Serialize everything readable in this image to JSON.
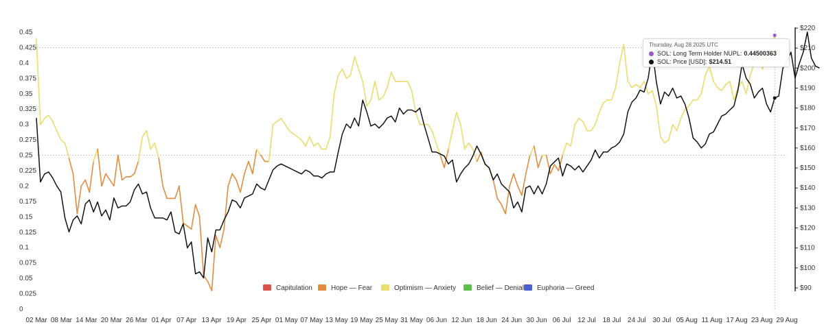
{
  "chart_data": {
    "type": "line",
    "x_tick_labels": [
      "02 Mar",
      "08 Mar",
      "14 Mar",
      "20 Mar",
      "26 Mar",
      "01 Apr",
      "07 Apr",
      "13 Apr",
      "19 Apr",
      "25 Apr",
      "01 May",
      "07 May",
      "13 May",
      "19 May",
      "25 May",
      "31 May",
      "06 Jun",
      "12 Jun",
      "18 Jun",
      "24 Jun",
      "30 Jun",
      "06 Jul",
      "12 Jul",
      "18 Jul",
      "24 Jul",
      "30 Jul",
      "05 Aug",
      "11 Aug",
      "17 Aug",
      "23 Aug",
      "29 Aug"
    ],
    "y_left_ticks": [
      "0",
      "0.025",
      "0.05",
      "0.075",
      "0.1",
      "0.125",
      "0.15",
      "0.175",
      "0.2",
      "0.225",
      "0.25",
      "0.275",
      "0.3",
      "0.325",
      "0.35",
      "0.375",
      "0.4",
      "0.425",
      "0.45"
    ],
    "y_left_range": [
      0,
      0.45
    ],
    "y_right_ticks": [
      "$90",
      "$100",
      "$110",
      "$120",
      "$130",
      "$140",
      "$150",
      "$160",
      "$170",
      "$180",
      "$190",
      "$200",
      "$210",
      "$220"
    ],
    "y_right_range": [
      90,
      220
    ],
    "series": [
      {
        "name": "SOL: Long Term Holder NUPL",
        "axis": "left",
        "values": [
          0.44,
          0.3,
          0.31,
          0.315,
          0.305,
          0.29,
          0.275,
          0.27,
          0.245,
          0.22,
          0.155,
          0.2,
          0.21,
          0.19,
          0.24,
          0.26,
          0.2,
          0.22,
          0.21,
          0.2,
          0.25,
          0.21,
          0.215,
          0.215,
          0.22,
          0.24,
          0.28,
          0.29,
          0.26,
          0.27,
          0.245,
          0.2,
          0.18,
          0.18,
          0.18,
          0.2,
          0.14,
          0.135,
          0.13,
          0.17,
          0.15,
          0.055,
          0.045,
          0.03,
          0.12,
          0.1,
          0.13,
          0.2,
          0.22,
          0.21,
          0.19,
          0.22,
          0.24,
          0.22,
          0.26,
          0.25,
          0.24,
          0.24,
          0.3,
          0.305,
          0.31,
          0.3,
          0.29,
          0.285,
          0.28,
          0.275,
          0.265,
          0.28,
          0.265,
          0.27,
          0.26,
          0.26,
          0.28,
          0.35,
          0.38,
          0.39,
          0.375,
          0.38,
          0.41,
          0.39,
          0.37,
          0.33,
          0.34,
          0.37,
          0.34,
          0.345,
          0.36,
          0.385,
          0.37,
          0.37,
          0.37,
          0.37,
          0.355,
          0.32,
          0.3,
          0.3,
          0.3,
          0.29,
          0.27,
          0.25,
          0.23,
          0.26,
          0.29,
          0.32,
          0.3,
          0.26,
          0.27,
          0.26,
          0.24,
          0.255,
          0.235,
          0.23,
          0.21,
          0.18,
          0.17,
          0.155,
          0.2,
          0.22,
          0.2,
          0.185,
          0.22,
          0.25,
          0.265,
          0.23,
          0.25,
          0.25,
          0.22,
          0.235,
          0.225,
          0.25,
          0.27,
          0.265,
          0.3,
          0.31,
          0.305,
          0.29,
          0.29,
          0.3,
          0.32,
          0.335,
          0.34,
          0.34,
          0.36,
          0.4,
          0.43,
          0.37,
          0.36,
          0.365,
          0.36,
          0.37,
          0.35,
          0.355,
          0.33,
          0.28,
          0.27,
          0.275,
          0.3,
          0.29,
          0.31,
          0.325,
          0.33,
          0.34,
          0.34,
          0.35,
          0.38,
          0.395,
          0.37,
          0.36,
          0.355,
          0.365,
          0.37,
          0.34,
          0.36,
          0.37,
          0.35,
          0.38,
          0.4,
          0.42,
          0.39,
          0.41,
          0.42,
          0.445,
          0.41,
          0.4,
          0.395
        ]
      },
      {
        "name": "SOL: Price [USD]",
        "axis": "right",
        "values": [
          175,
          143,
          147,
          148,
          145,
          141,
          138,
          125,
          118,
          124,
          126,
          122,
          132,
          134,
          128,
          133,
          126,
          129,
          124,
          135,
          130,
          131,
          131,
          133,
          139,
          142,
          137,
          138,
          130,
          125,
          125,
          125,
          124,
          128,
          118,
          117,
          122,
          110,
          113,
          97,
          98,
          95,
          115,
          108,
          119,
          119,
          124,
          128,
          134,
          133,
          130,
          135,
          136,
          137,
          142,
          140,
          139,
          144,
          149,
          151,
          152,
          151,
          150,
          149,
          148,
          147,
          149,
          148,
          146,
          146,
          145,
          147,
          148,
          148,
          158,
          167,
          172,
          170,
          175,
          171,
          184,
          178,
          171,
          172,
          170,
          172,
          175,
          176,
          173,
          180,
          177,
          179,
          179,
          178,
          180,
          172,
          165,
          158,
          158,
          157,
          156,
          152,
          154,
          143,
          147,
          150,
          152,
          156,
          161,
          157,
          152,
          150,
          144,
          147,
          142,
          140,
          138,
          130,
          133,
          128,
          140,
          141,
          137,
          141,
          137,
          142,
          151,
          153,
          155,
          146,
          152,
          151,
          149,
          151,
          148,
          151,
          154,
          159,
          155,
          158,
          158,
          160,
          161,
          163,
          167,
          178,
          183,
          185,
          189,
          188,
          195,
          209,
          193,
          182,
          188,
          186,
          190,
          185,
          186,
          182,
          175,
          165,
          163,
          160,
          162,
          167,
          168,
          172,
          176,
          177,
          179,
          181,
          189,
          202,
          195,
          192,
          185,
          188,
          190,
          182,
          178,
          185,
          186,
          200,
          203,
          208,
          195,
          202,
          208,
          218,
          205,
          201,
          200
        ]
      }
    ],
    "legend": [
      {
        "label": "Capitulation",
        "color": "#d9534a"
      },
      {
        "label": "Hope — Fear",
        "color": "#e08d40"
      },
      {
        "label": "Optimism — Anxiety",
        "color": "#ebdc6e"
      },
      {
        "label": "Belief — Denial",
        "color": "#5cbf4a"
      },
      {
        "label": "Euphoria — Greed",
        "color": "#4a5fd1"
      }
    ],
    "legend_placement": "bottom-center",
    "reference_levels": [
      0.425,
      0.25
    ],
    "grid": false,
    "colors": {
      "price_line": "#111111",
      "zone_hope_fear": "#e08d40",
      "zone_optimism": "#ebdc6e",
      "reference_line": "#cfcfcf"
    }
  },
  "tooltip": {
    "date": "Thursday, Aug 28 2025 UTC",
    "rows": [
      {
        "label": "SOL: Long Term Holder NUPL:",
        "value": "0.44500363",
        "color": "#9b59d0"
      },
      {
        "label": "SOL: Price [USD]:",
        "value": "$214.51",
        "color": "#111111"
      }
    ]
  }
}
